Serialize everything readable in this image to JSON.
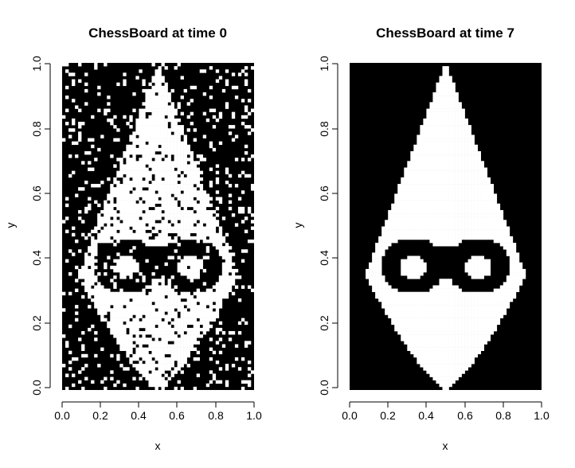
{
  "chart_data": [
    {
      "type": "heatmap",
      "title": "ChessBoard at time 0",
      "xlabel": "x",
      "ylabel": "y",
      "xlim": [
        0,
        1
      ],
      "ylim": [
        0,
        1
      ],
      "x_ticks": [
        "0.0",
        "0.2",
        "0.4",
        "0.6",
        "0.8",
        "1.0"
      ],
      "y_ticks": [
        "0.0",
        "0.2",
        "0.4",
        "0.6",
        "0.8",
        "1.0"
      ],
      "grid": false,
      "colors": {
        "on": "#000000",
        "off": "#ffffff"
      },
      "grid_cells": [
        60,
        100
      ],
      "pattern": "teardrop mask with sunglasses; noisy black background",
      "noise_density": 0.12
    },
    {
      "type": "heatmap",
      "title": "ChessBoard at time  7",
      "xlabel": "x",
      "ylabel": "y",
      "xlim": [
        0,
        1
      ],
      "ylim": [
        0,
        1
      ],
      "x_ticks": [
        "0.0",
        "0.2",
        "0.4",
        "0.6",
        "0.8",
        "1.0"
      ],
      "y_ticks": [
        "0.0",
        "0.2",
        "0.4",
        "0.6",
        "0.8",
        "1.0"
      ],
      "grid": false,
      "colors": {
        "on": "#000000",
        "off": "#ffffff"
      },
      "grid_cells": [
        60,
        100
      ],
      "pattern": "smoothed teardrop mask with sunglasses; solid black background",
      "noise_density": 0
    }
  ]
}
